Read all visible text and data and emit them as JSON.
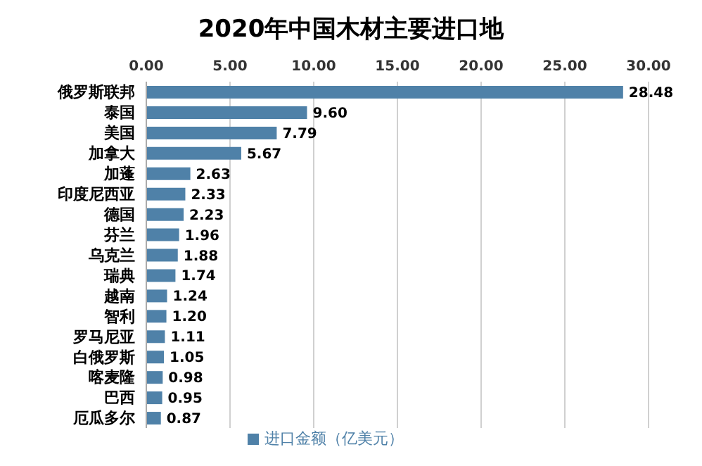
{
  "chart_data": {
    "type": "bar",
    "orientation": "horizontal",
    "title": "2020年中国木材主要进口地",
    "categories": [
      "俄罗斯联邦",
      "泰国",
      "美国",
      "加拿大",
      "加蓬",
      "印度尼西亚",
      "德国",
      "芬兰",
      "乌克兰",
      "瑞典",
      "越南",
      "智利",
      "罗马尼亚",
      "白俄罗斯",
      "喀麦隆",
      "巴西",
      "厄瓜多尔"
    ],
    "series": [
      {
        "name": "进口金额（亿美元）",
        "color": "#4f81a8",
        "values": [
          28.48,
          9.6,
          7.79,
          5.67,
          2.63,
          2.33,
          2.23,
          1.96,
          1.88,
          1.74,
          1.24,
          1.2,
          1.11,
          1.05,
          0.98,
          0.95,
          0.87
        ],
        "value_labels": [
          "28.48",
          "9.60",
          "7.79",
          "5.67",
          "2.63",
          "2.33",
          "2.23",
          "1.96",
          "1.88",
          "1.74",
          "1.24",
          "1.20",
          "1.11",
          "1.05",
          "0.98",
          "0.95",
          "0.87"
        ]
      }
    ],
    "xlim": [
      0,
      30
    ],
    "xticks": [
      {
        "value": 0,
        "label": "0.00"
      },
      {
        "value": 5,
        "label": "5.00"
      },
      {
        "value": 10,
        "label": "10.00"
      },
      {
        "value": 15,
        "label": "15.00"
      },
      {
        "value": 20,
        "label": "20.00"
      },
      {
        "value": 25,
        "label": "25.00"
      },
      {
        "value": 30,
        "label": "30.00"
      }
    ],
    "grid": "x",
    "legend": "bottom"
  }
}
